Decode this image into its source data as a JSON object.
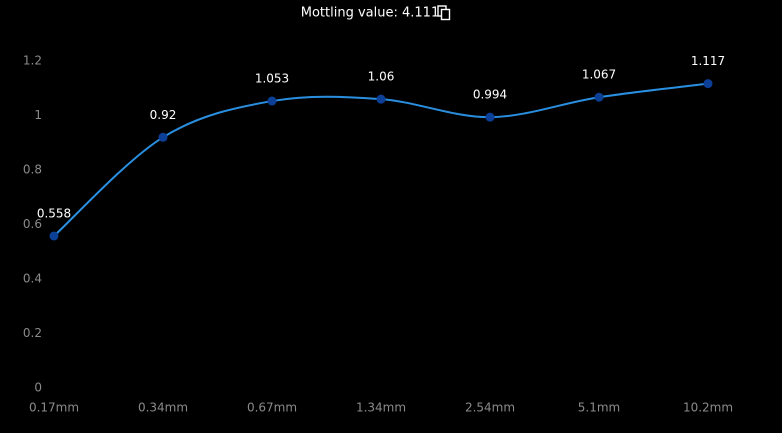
{
  "chart_data": {
    "type": "line",
    "title": "Mottling value: 4.111",
    "categories": [
      "0.17mm",
      "0.34mm",
      "0.67mm",
      "1.34mm",
      "2.54mm",
      "5.1mm",
      "10.2mm"
    ],
    "series": [
      {
        "color": "#2a8fe0",
        "marker_color": "#0c3f96",
        "values": [
          0.558,
          0.92,
          1.053,
          1.06,
          0.994,
          1.067,
          1.117
        ]
      }
    ],
    "ylim": [
      0,
      1.2
    ],
    "yticks": [
      0,
      0.2,
      0.4,
      0.6,
      0.8,
      1,
      1.2
    ],
    "grid": false,
    "smooth": true
  }
}
